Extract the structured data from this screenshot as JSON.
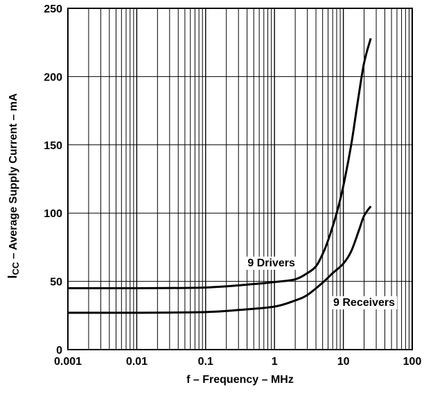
{
  "chart_data": {
    "type": "line",
    "xscale": "log",
    "xlim": [
      0.001,
      100
    ],
    "ylim": [
      0,
      250
    ],
    "grid": true,
    "xlabel": "f – Frequency – MHz",
    "ylabel_main": "I",
    "ylabel_sub": "CC",
    "ylabel_rest": " – Average Supply Current – mA",
    "xticks": [
      {
        "value": 0.001,
        "label": "0.001"
      },
      {
        "value": 0.01,
        "label": "0.01"
      },
      {
        "value": 0.1,
        "label": "0.1"
      },
      {
        "value": 1,
        "label": "1"
      },
      {
        "value": 10,
        "label": "10"
      },
      {
        "value": 100,
        "label": "100"
      }
    ],
    "yticks": [
      {
        "value": 0,
        "label": "0"
      },
      {
        "value": 50,
        "label": "50"
      },
      {
        "value": 100,
        "label": "100"
      },
      {
        "value": 150,
        "label": "150"
      },
      {
        "value": 200,
        "label": "200"
      },
      {
        "value": 250,
        "label": "250"
      }
    ],
    "series": [
      {
        "name": "9 Drivers",
        "color": "#000000",
        "points": [
          [
            0.001,
            45
          ],
          [
            0.01,
            45
          ],
          [
            0.1,
            45.5
          ],
          [
            0.5,
            48
          ],
          [
            1,
            49.5
          ],
          [
            2,
            51.5
          ],
          [
            3,
            56
          ],
          [
            4,
            61
          ],
          [
            5,
            70
          ],
          [
            6,
            80
          ],
          [
            8,
            100
          ],
          [
            10,
            120
          ],
          [
            13,
            150
          ],
          [
            16,
            180
          ],
          [
            20,
            210
          ],
          [
            25,
            228
          ]
        ]
      },
      {
        "name": "9 Receivers",
        "color": "#000000",
        "points": [
          [
            0.001,
            27
          ],
          [
            0.01,
            27
          ],
          [
            0.1,
            27.5
          ],
          [
            0.3,
            29
          ],
          [
            1,
            31.5
          ],
          [
            2,
            36
          ],
          [
            3,
            40
          ],
          [
            5,
            49
          ],
          [
            7,
            56
          ],
          [
            10,
            63
          ],
          [
            13,
            72
          ],
          [
            17,
            88
          ],
          [
            20,
            98
          ],
          [
            25,
            105
          ]
        ]
      }
    ],
    "annotations": [
      {
        "text": "9 Drivers",
        "x": 0.9,
        "y": 61
      },
      {
        "text": "9 Receivers",
        "x": 20,
        "y": 32
      }
    ]
  }
}
